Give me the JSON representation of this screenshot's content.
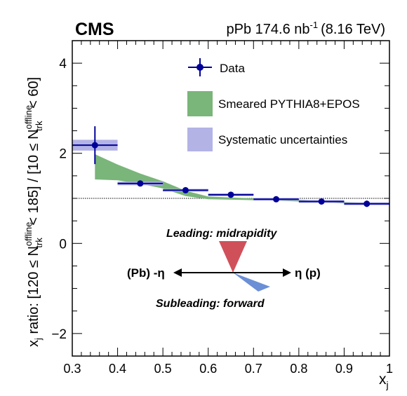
{
  "chart_data": {
    "type": "scatter",
    "experiment": "CMS",
    "header": {
      "system": "pPb 174.6 nb",
      "lumi_exp": "-1",
      "energy": "(8.16 TeV)"
    },
    "xlabel": {
      "main": "x",
      "sub": "j"
    },
    "ylabel": {
      "p1": "x",
      "p1_sub": "j",
      "p2": " ratio: [120 ≤ N",
      "p2_sup": "offline",
      "p2_sub": "trk",
      "p3": " < 185] / [10 ≤ N",
      "p3_sup": "offline",
      "p3_sub": "trk",
      "p4": " < 60]"
    },
    "xlim": [
      0.3,
      1.0
    ],
    "ylim": [
      -2.5,
      4.5
    ],
    "xticks": [
      0.3,
      0.4,
      0.5,
      0.6,
      0.7,
      0.8,
      0.9,
      1.0
    ],
    "xtick_labels": [
      "0.3",
      "0.4",
      "0.5",
      "0.6",
      "0.7",
      "0.8",
      "0.9",
      "1"
    ],
    "yticks": [
      -2,
      0,
      2,
      4
    ],
    "ytick_labels": [
      "−2",
      "0",
      "2",
      "4"
    ],
    "reference_line": 1.0,
    "legend": {
      "position": "top-right",
      "entries": [
        {
          "label": "Data",
          "style": "marker"
        },
        {
          "label": "Smeared PYTHIA8+EPOS",
          "style": "band-green"
        },
        {
          "label": "Systematic uncertainties",
          "style": "band-blue"
        }
      ]
    },
    "series": [
      {
        "name": "Data",
        "color": "#000099",
        "points": [
          {
            "x": 0.35,
            "xlo": 0.3,
            "xhi": 0.4,
            "y": 2.18,
            "yerr": 0.42,
            "syst": 0.12
          },
          {
            "x": 0.45,
            "xlo": 0.4,
            "xhi": 0.5,
            "y": 1.33,
            "yerr": 0.06,
            "syst": 0.04
          },
          {
            "x": 0.55,
            "xlo": 0.5,
            "xhi": 0.6,
            "y": 1.18,
            "yerr": 0.04,
            "syst": 0.03
          },
          {
            "x": 0.65,
            "xlo": 0.6,
            "xhi": 0.7,
            "y": 1.08,
            "yerr": 0.03,
            "syst": 0.03
          },
          {
            "x": 0.75,
            "xlo": 0.7,
            "xhi": 0.8,
            "y": 0.98,
            "yerr": 0.03,
            "syst": 0.03
          },
          {
            "x": 0.85,
            "xlo": 0.8,
            "xhi": 0.9,
            "y": 0.93,
            "yerr": 0.03,
            "syst": 0.03
          },
          {
            "x": 0.95,
            "xlo": 0.9,
            "xhi": 1.0,
            "y": 0.88,
            "yerr": 0.07,
            "syst": 0.03
          }
        ]
      },
      {
        "name": "Smeared PYTHIA8+EPOS",
        "color": "#7ab57a",
        "band_x": [
          0.35,
          0.4,
          0.45,
          0.5,
          0.55,
          0.6,
          0.65,
          0.7,
          0.75,
          0.8,
          0.85,
          0.9,
          0.95
        ],
        "band_hi": [
          1.98,
          1.75,
          1.55,
          1.38,
          1.17,
          1.04,
          1.02,
          1.0,
          0.99,
          0.97,
          0.95,
          0.92,
          0.9
        ],
        "band_lo": [
          1.42,
          1.4,
          1.32,
          1.22,
          1.05,
          0.98,
          0.97,
          0.96,
          0.95,
          0.93,
          0.91,
          0.89,
          0.87
        ]
      }
    ],
    "annotation": {
      "leading": "Leading: midrapidity",
      "subleading": "Subleading: forward",
      "left_label": "(Pb) -η",
      "right_label": "η (p)",
      "leading_color": "#d0505a",
      "subleading_color": "#6b8fd6"
    },
    "colors": {
      "data": "#000099",
      "model_band": "#7ab57a",
      "syst_band": "#b3b3e6",
      "reference_line": "#000000"
    }
  }
}
